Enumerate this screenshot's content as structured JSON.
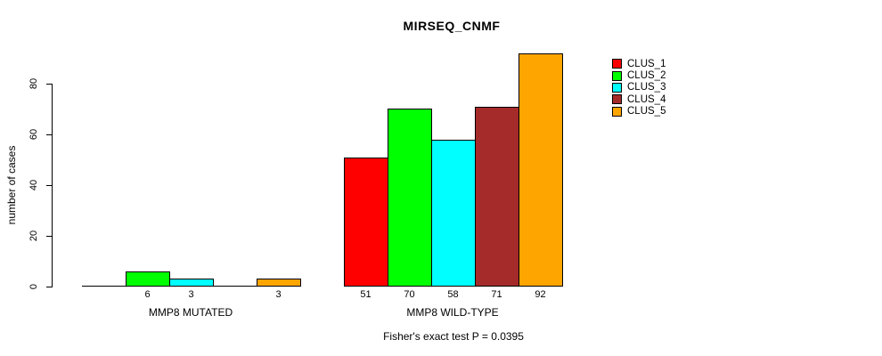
{
  "chart_data": {
    "type": "bar",
    "title": "MIRSEQ_CNMF",
    "ylabel": "number of cases",
    "xlabel": "",
    "footnote": "Fisher's exact test P = 0.0395",
    "yticks": [
      0,
      20,
      40,
      60,
      80
    ],
    "ylim": [
      0,
      92
    ],
    "grid": false,
    "legend_position": "top-right",
    "groups": [
      {
        "label": "MMP8 MUTATED"
      },
      {
        "label": "MMP8 WILD-TYPE"
      }
    ],
    "series": [
      {
        "name": "CLUS_1",
        "color": "#FF0000",
        "values": [
          0,
          51
        ]
      },
      {
        "name": "CLUS_2",
        "color": "#00FF00",
        "values": [
          6,
          70
        ]
      },
      {
        "name": "CLUS_3",
        "color": "#00FFFF",
        "values": [
          3,
          58
        ]
      },
      {
        "name": "CLUS_4",
        "color": "#A52A2A",
        "values": [
          0,
          71
        ]
      },
      {
        "name": "CLUS_5",
        "color": "#FFA500",
        "values": [
          3,
          92
        ]
      }
    ],
    "value_labels_note": "labels shown only for bars with value > 0"
  }
}
